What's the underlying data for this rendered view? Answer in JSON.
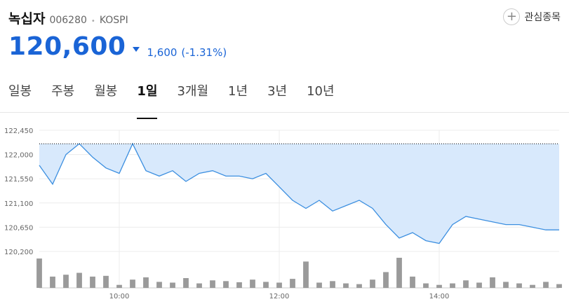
{
  "stock": {
    "name": "녹십자",
    "code": "006280",
    "market": "KOSPI",
    "price": "120,600",
    "change": "1,600",
    "change_pct": "(-1.31%)",
    "direction": "down"
  },
  "favorite": {
    "label": "관심종목",
    "icon": "plus-icon"
  },
  "tabs": [
    {
      "label": "일봉",
      "active": false
    },
    {
      "label": "주봉",
      "active": false
    },
    {
      "label": "월봉",
      "active": false
    },
    {
      "label": "1일",
      "active": true
    },
    {
      "label": "3개월",
      "active": false
    },
    {
      "label": "1년",
      "active": false
    },
    {
      "label": "3년",
      "active": false
    },
    {
      "label": "10년",
      "active": false
    }
  ],
  "colors": {
    "accent": "#1a64d6",
    "line": "#3c8fe0",
    "fill": "#d8e9fc",
    "volume": "#9a9a9a",
    "prev_close": "#000000"
  },
  "chart_data": {
    "type": "line",
    "y_ticks": [
      "122,450",
      "122,000",
      "121,550",
      "121,100",
      "120,650",
      "120,200"
    ],
    "x_ticks": [
      "10:00",
      "12:00",
      "14:00"
    ],
    "ylim": [
      120200,
      122450
    ],
    "prev_close": 122200,
    "x": [
      "09:00",
      "09:10",
      "09:20",
      "09:30",
      "09:40",
      "09:50",
      "10:00",
      "10:10",
      "10:20",
      "10:30",
      "10:40",
      "10:50",
      "11:00",
      "11:10",
      "11:20",
      "11:30",
      "11:40",
      "11:50",
      "12:00",
      "12:10",
      "12:20",
      "12:30",
      "12:40",
      "12:50",
      "13:00",
      "13:10",
      "13:20",
      "13:30",
      "13:40",
      "13:50",
      "14:00",
      "14:10",
      "14:20",
      "14:30",
      "14:40",
      "14:50",
      "15:00",
      "15:10",
      "15:20",
      "15:30"
    ],
    "price": [
      121800,
      121450,
      122000,
      122200,
      121950,
      121750,
      121650,
      122200,
      121700,
      121600,
      121700,
      121500,
      121650,
      121700,
      121600,
      121600,
      121550,
      121650,
      121400,
      121150,
      121000,
      121150,
      120950,
      121050,
      121150,
      121000,
      120700,
      120450,
      120550,
      120400,
      120350,
      120700,
      120850,
      120800,
      120750,
      120700,
      120700,
      120650,
      120600,
      120600
    ],
    "volume": [
      78,
      30,
      35,
      40,
      30,
      32,
      8,
      22,
      28,
      16,
      14,
      26,
      12,
      20,
      18,
      15,
      22,
      16,
      14,
      24,
      70,
      14,
      18,
      12,
      10,
      22,
      42,
      80,
      30,
      12,
      8,
      12,
      20,
      14,
      28,
      16,
      12,
      8,
      16,
      10
    ]
  }
}
